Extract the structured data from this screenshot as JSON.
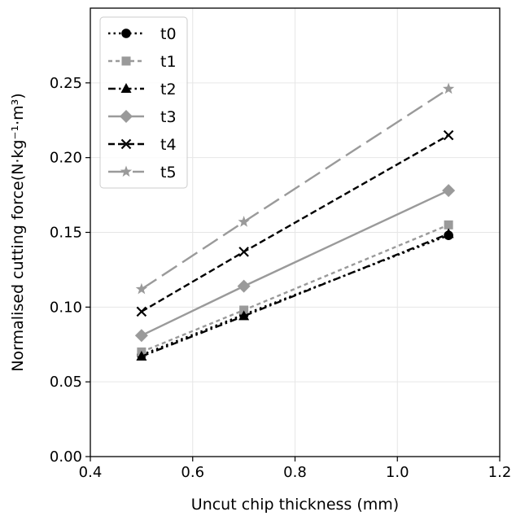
{
  "chart_data": {
    "type": "line",
    "title": "",
    "xlabel": "Uncut chip thickness (mm)",
    "ylabel": "Normalised cutting force(N·kg⁻¹·m³)",
    "xlim": [
      0.4,
      1.2
    ],
    "ylim": [
      0.0,
      0.3
    ],
    "xticks": [
      0.4,
      0.6,
      0.8,
      1.0,
      1.2
    ],
    "xtick_labels": [
      "0.4",
      "0.6",
      "0.8",
      "1.0",
      "1.2"
    ],
    "yticks": [
      0.0,
      0.05,
      0.1,
      0.15,
      0.2,
      0.25
    ],
    "ytick_labels": [
      "0.00",
      "0.05",
      "0.10",
      "0.15",
      "0.20",
      "0.25"
    ],
    "grid": true,
    "legend_position": "top-left",
    "x": [
      0.5,
      0.7,
      1.1
    ],
    "series": [
      {
        "name": "t0",
        "values": [
          0.068,
          0.095,
          0.148
        ],
        "color": "#000000",
        "dash": "dotted",
        "marker": "circle"
      },
      {
        "name": "t1",
        "values": [
          0.07,
          0.098,
          0.155
        ],
        "color": "#9a9a9a",
        "dash": "short-dash",
        "marker": "square"
      },
      {
        "name": "t2",
        "values": [
          0.067,
          0.094,
          0.149
        ],
        "color": "#000000",
        "dash": "dash-dot",
        "marker": "triangle"
      },
      {
        "name": "t3",
        "values": [
          0.081,
          0.114,
          0.178
        ],
        "color": "#9a9a9a",
        "dash": "solid",
        "marker": "diamond"
      },
      {
        "name": "t4",
        "values": [
          0.097,
          0.137,
          0.215
        ],
        "color": "#000000",
        "dash": "dashed",
        "marker": "x"
      },
      {
        "name": "t5",
        "values": [
          0.112,
          0.157,
          0.246
        ],
        "color": "#9a9a9a",
        "dash": "long-dash",
        "marker": "star"
      }
    ]
  }
}
